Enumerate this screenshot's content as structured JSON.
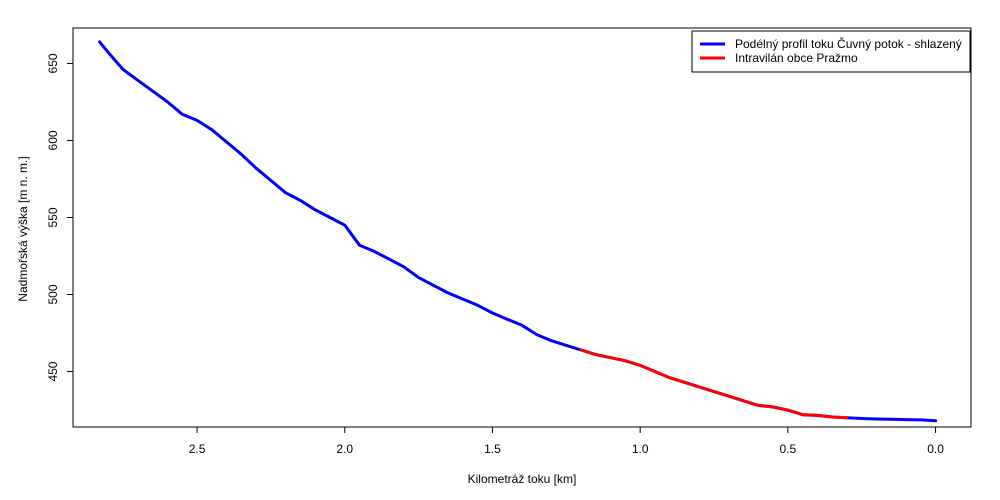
{
  "chart_data": {
    "type": "line",
    "xlabel": "Kilometráž toku [km]",
    "ylabel": "Nadmořská výška [m n. m.]",
    "x_reversed": true,
    "xlim": [
      2.92,
      -0.12
    ],
    "ylim": [
      414,
      673
    ],
    "x_ticks": [
      2.5,
      2.0,
      1.5,
      1.0,
      0.5,
      0.0
    ],
    "x_tick_labels": [
      "2.5",
      "2.0",
      "1.5",
      "1.0",
      "0.5",
      "0.0"
    ],
    "y_ticks": [
      450,
      500,
      550,
      600,
      650
    ],
    "y_tick_labels": [
      "450",
      "500",
      "550",
      "600",
      "650"
    ],
    "grid": false,
    "legend_position": "top-right",
    "legend": [
      {
        "label": "Podélný profil toku Čuvný potok - shlazený",
        "color": "#0000ff"
      },
      {
        "label": "Intravilán obce Pražmo",
        "color": "#ff0000"
      }
    ],
    "series": [
      {
        "name": "Podélný profil toku Čuvný potok - shlazený",
        "color": "#0000ff",
        "x": [
          2.83,
          2.8,
          2.75,
          2.7,
          2.65,
          2.6,
          2.55,
          2.5,
          2.45,
          2.4,
          2.35,
          2.3,
          2.25,
          2.2,
          2.15,
          2.1,
          2.05,
          2.0,
          1.95,
          1.9,
          1.85,
          1.8,
          1.75,
          1.7,
          1.65,
          1.6,
          1.55,
          1.5,
          1.45,
          1.4,
          1.35,
          1.3,
          1.25,
          1.2,
          1.15,
          1.1,
          1.05,
          1.0,
          0.95,
          0.9,
          0.85,
          0.8,
          0.75,
          0.7,
          0.65,
          0.6,
          0.55,
          0.5,
          0.45,
          0.4,
          0.35,
          0.3,
          0.25,
          0.2,
          0.15,
          0.1,
          0.05,
          0.0
        ],
        "y": [
          664,
          657,
          646,
          639,
          632,
          625,
          617,
          613,
          607,
          599,
          591,
          582,
          574,
          566,
          561,
          555,
          550,
          545,
          532,
          528,
          523,
          518,
          511,
          506,
          501,
          497,
          493,
          488,
          484,
          480,
          474,
          470,
          467,
          464,
          461,
          459,
          457,
          454,
          450,
          446,
          443,
          440,
          437,
          434,
          431,
          428,
          427,
          425,
          422,
          421.5,
          420.5,
          420,
          419.5,
          419.2,
          419,
          418.8,
          418.6,
          418
        ]
      },
      {
        "name": "Intravilán obce Pražmo",
        "color": "#ff0000",
        "x": [
          1.2,
          1.15,
          1.1,
          1.05,
          1.0,
          0.95,
          0.9,
          0.85,
          0.8,
          0.75,
          0.7,
          0.65,
          0.6,
          0.55,
          0.5,
          0.45,
          0.4,
          0.35,
          0.3
        ],
        "y": [
          464,
          461,
          459,
          457,
          454,
          450,
          446,
          443,
          440,
          437,
          434,
          431,
          428,
          427,
          425,
          422,
          421.5,
          420.5,
          420
        ]
      }
    ]
  }
}
